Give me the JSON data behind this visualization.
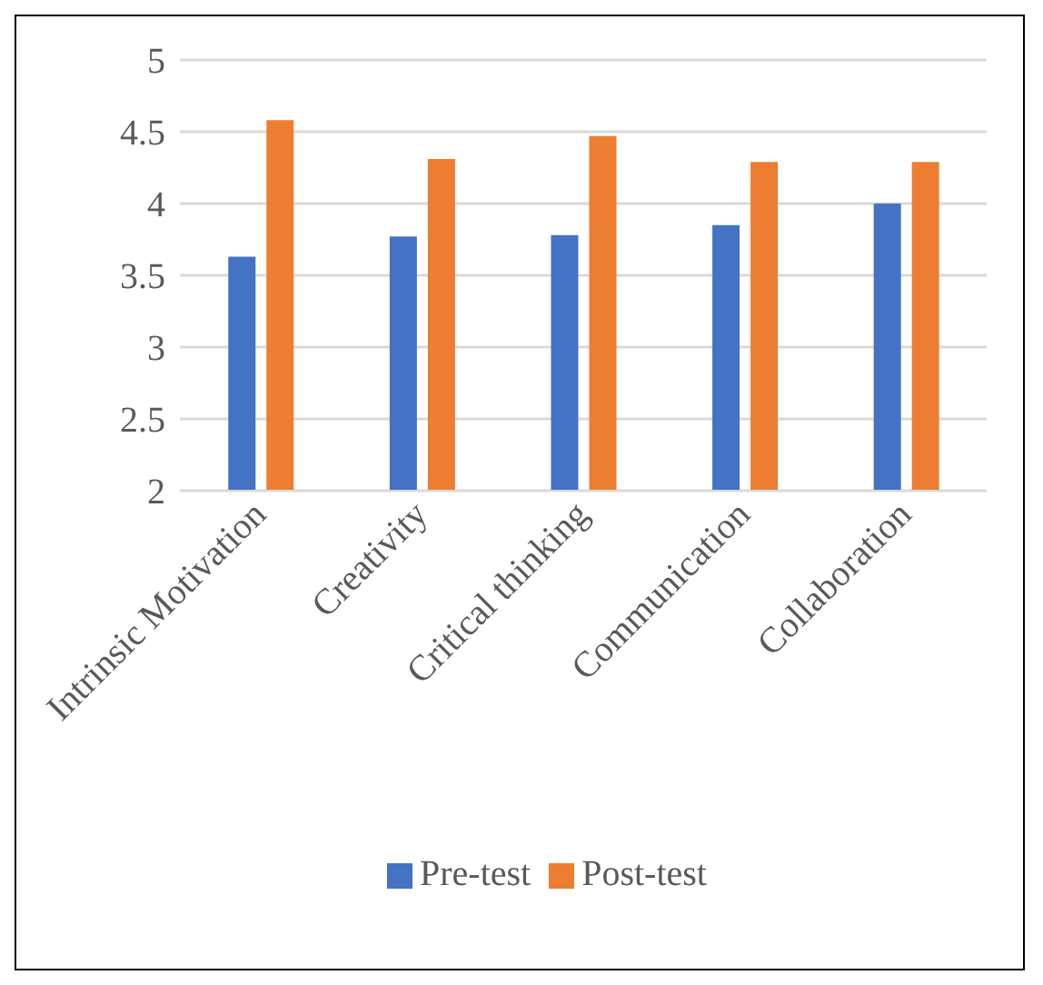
{
  "chart_data": {
    "type": "bar",
    "categories": [
      "Intrinsic Motivation",
      "Creativity",
      "Critical thinking",
      "Communication",
      "Collaboration"
    ],
    "series": [
      {
        "name": "Pre-test",
        "color": "#4472c4",
        "values": [
          3.63,
          3.77,
          3.78,
          3.85,
          4.0
        ]
      },
      {
        "name": "Post-test",
        "color": "#ed7d31",
        "values": [
          4.58,
          4.31,
          4.47,
          4.29,
          4.29
        ]
      }
    ],
    "ylim": [
      2,
      5
    ],
    "yticks": [
      2,
      2.5,
      3,
      3.5,
      4,
      4.5,
      5
    ],
    "grid": "y",
    "legend": "bottom"
  }
}
